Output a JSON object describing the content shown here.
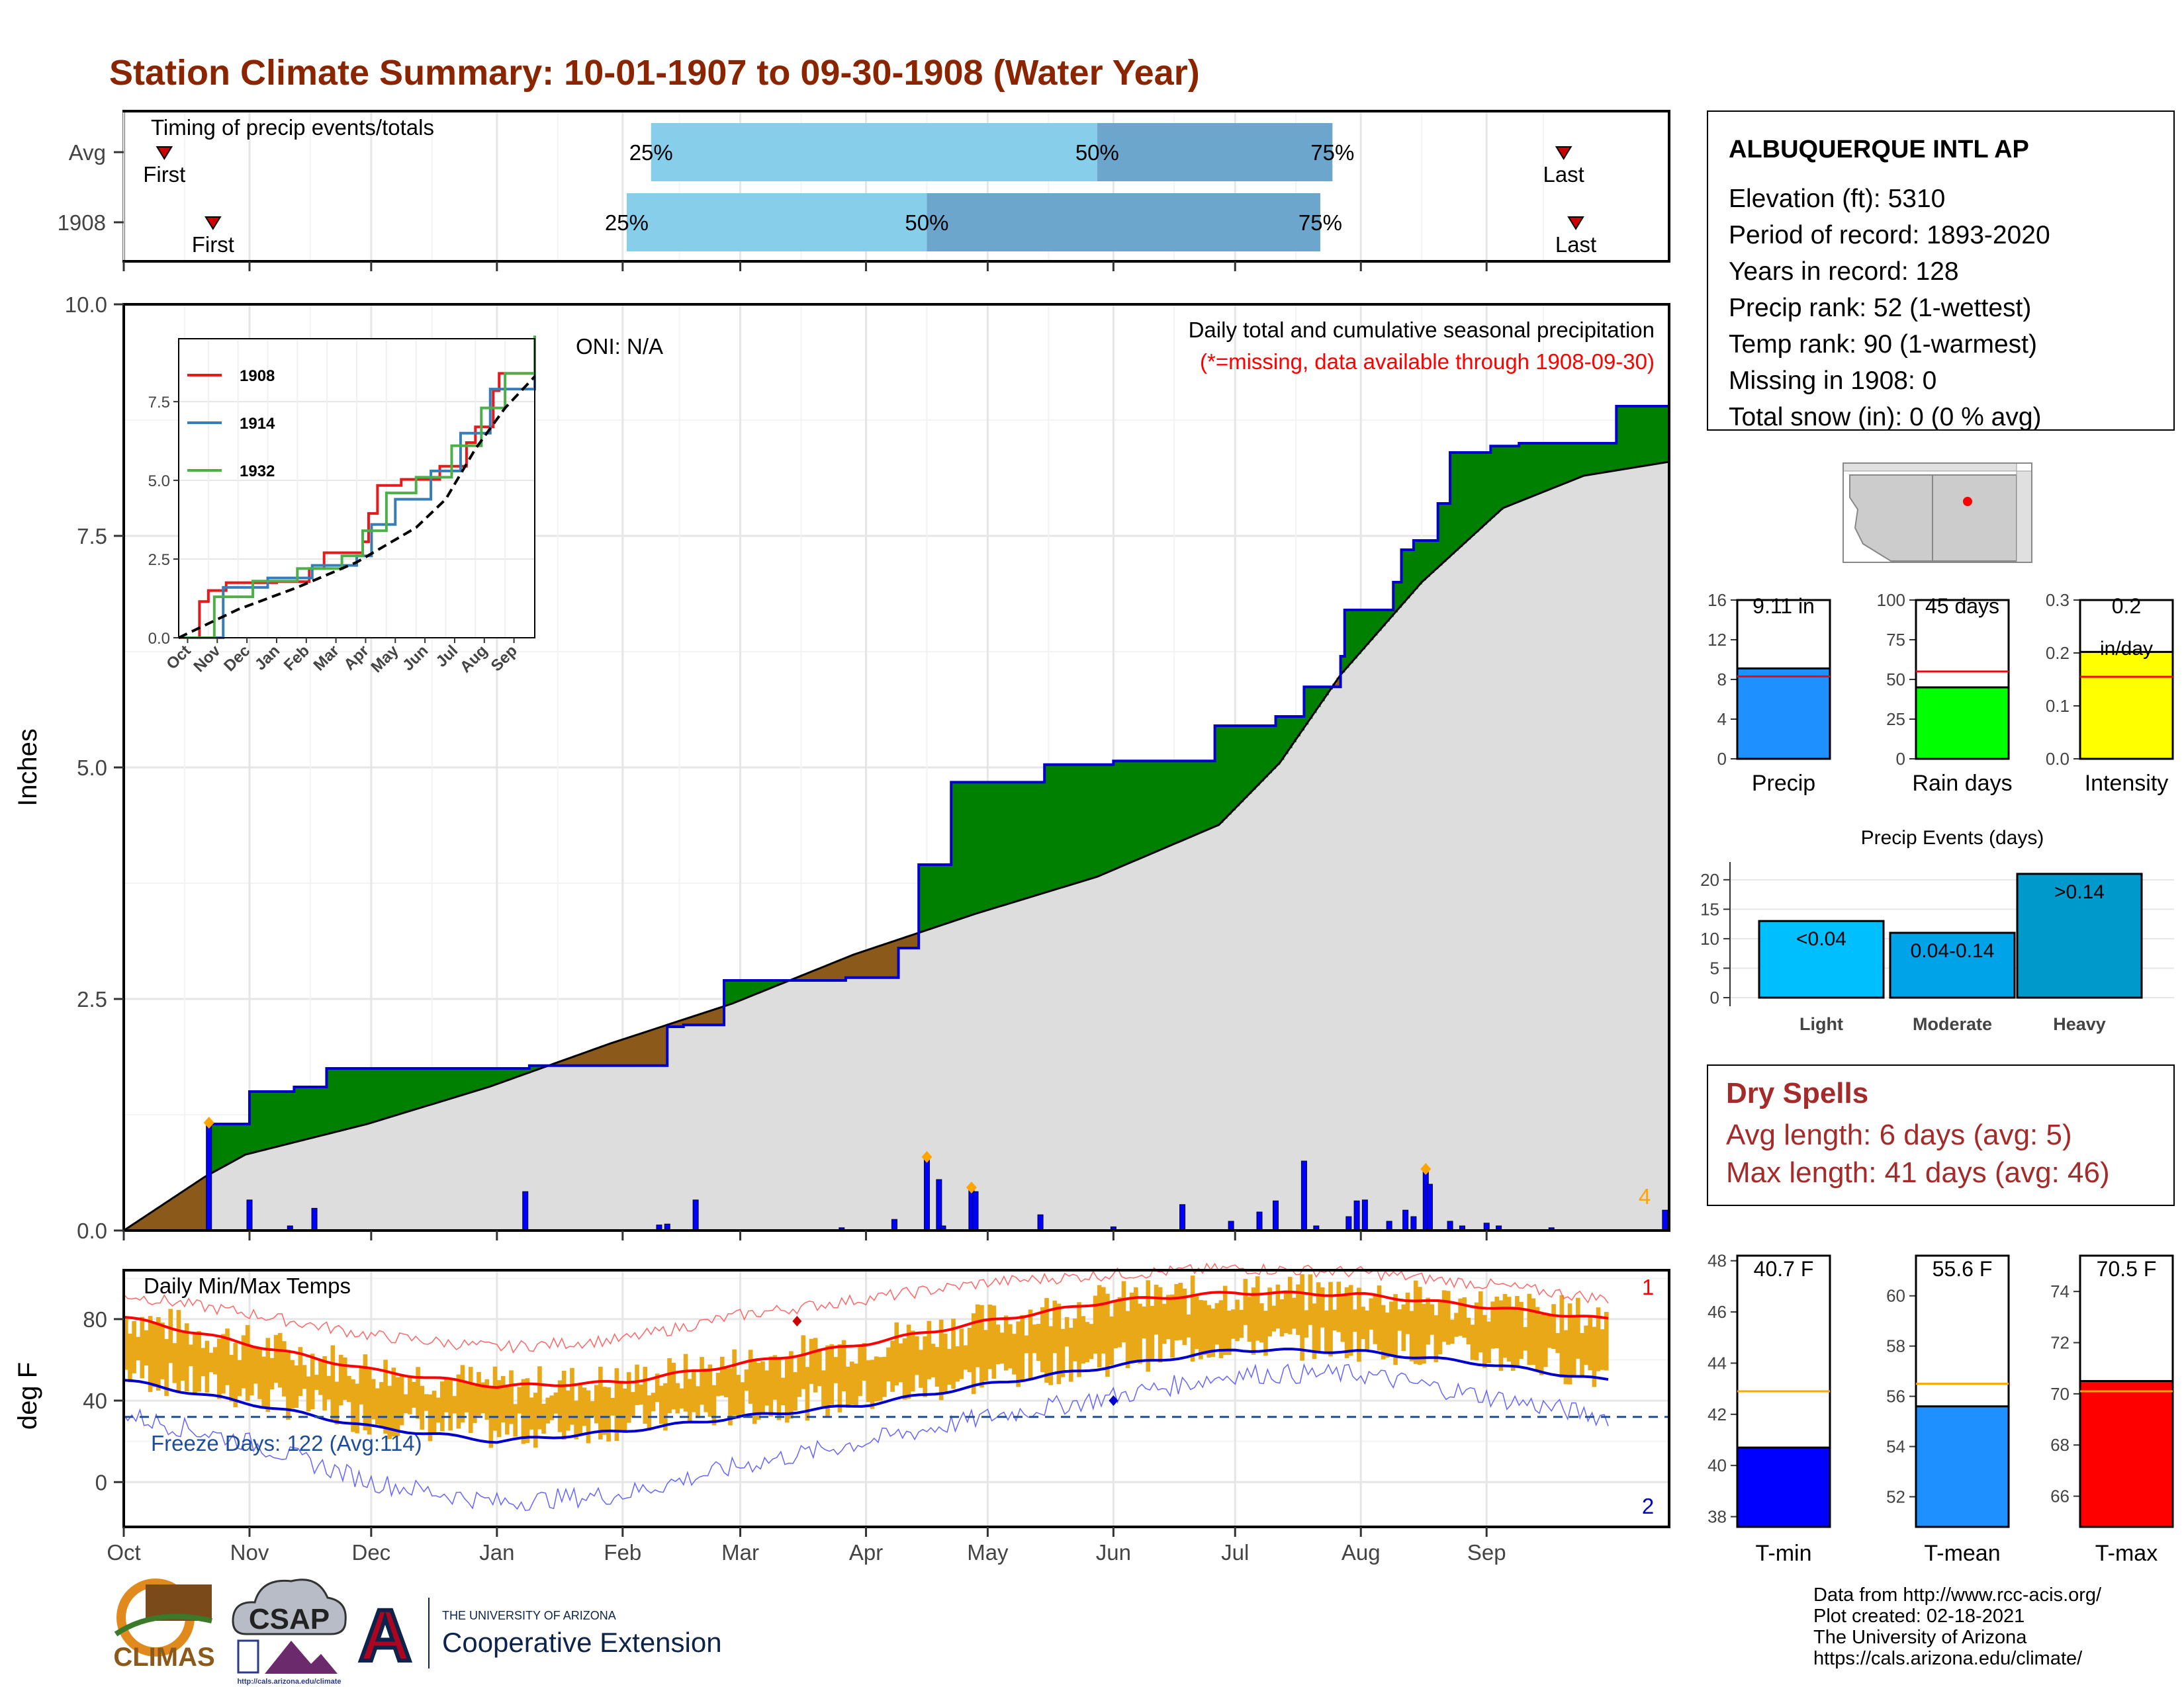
{
  "page_title": "Station Climate Summary: 10-01-1907 to 09-30-1908 (Water Year)",
  "colors": {
    "title": "#8B2500",
    "cumulative_1908": "#0000CD",
    "wet_fill": "#008000",
    "dry_fill": "#8B5A1A",
    "avg_fill": "#DDDDDD",
    "daily_bar": "#0000FF",
    "temp_range": "#E8A818",
    "tmax_line": "#FF0000",
    "tmin_line": "#0000CD",
    "quartile_light": "#87CEEB",
    "quartile_dark": "#6CA6CD",
    "dry_spell_text": "#A52A2A"
  },
  "months": [
    "Oct",
    "Nov",
    "Dec",
    "Jan",
    "Feb",
    "Mar",
    "Apr",
    "May",
    "Jun",
    "Jul",
    "Aug",
    "Sep"
  ],
  "timing": {
    "title": "Timing of precip events/totals",
    "rows": [
      {
        "label": "Avg",
        "first_label": "First",
        "last_label": "Last",
        "first_day": 10,
        "last_day": 355,
        "q25_day": 130,
        "q50_day": 240,
        "q75_day": 298,
        "q_labels": [
          "25%",
          "50%",
          "75%"
        ]
      },
      {
        "label": "1908",
        "first_label": "First",
        "last_label": "Last",
        "first_day": 22,
        "last_day": 358,
        "q25_day": 124,
        "q50_day": 198,
        "q75_day": 295,
        "q_labels": [
          "25%",
          "50%",
          "75%"
        ]
      }
    ]
  },
  "main_chart": {
    "ylabel": "Inches",
    "y_ticks": [
      "0.0",
      "2.5",
      "5.0",
      "7.5",
      "10.0"
    ],
    "annotation_title": "Daily total and cumulative seasonal precipitation",
    "annotation_missing": "(*=missing, data available through 1908-09-30)",
    "oni": "ONI: N/A",
    "corner_count": "4"
  },
  "inset": {
    "series": [
      {
        "name": "1908",
        "color": "#E41A1C"
      },
      {
        "name": "1914",
        "color": "#377EB8"
      },
      {
        "name": "1932",
        "color": "#4DAF4A"
      }
    ],
    "y_ticks": [
      "0.0",
      "2.5",
      "5.0",
      "7.5"
    ],
    "months": [
      "Oct",
      "Nov",
      "Dec",
      "Jan",
      "Feb",
      "Mar",
      "Apr",
      "May",
      "Jun",
      "Jul",
      "Aug",
      "Sep"
    ]
  },
  "temp_chart": {
    "title": "Daily Min/Max Temps",
    "ylabel": "deg F",
    "y_ticks": [
      "0",
      "40",
      "80"
    ],
    "freeze_label": "Freeze Days: 122 (Avg:114)",
    "record_high_count": "1",
    "record_low_count": "2"
  },
  "station": {
    "name": "ALBUQUERQUE INTL AP",
    "lines": [
      "Elevation (ft): 5310",
      "Period of record: 1893-2020",
      "Years in record: 128",
      "Precip rank: 52 (1-wettest)",
      "Temp rank: 90 (1-warmest)",
      "Missing in 1908: 0",
      "Total snow (in): 0 (0 % avg)"
    ]
  },
  "summary_bars": [
    {
      "label": "Precip",
      "value_label": "9.11 in",
      "value": 9.11,
      "avg": 8.3,
      "ymax": 16,
      "ticks": [
        "0",
        "4",
        "8",
        "12",
        "16"
      ],
      "color": "#1E90FF"
    },
    {
      "label": "Rain days",
      "value_label": "45 days",
      "value": 45,
      "avg": 55,
      "ymax": 100,
      "ticks": [
        "0",
        "25",
        "50",
        "75",
        "100"
      ],
      "color": "#00FF00"
    },
    {
      "label": "Intensity",
      "value_label": "0.2",
      "value_label2": "in/day",
      "value": 0.202,
      "avg": 0.155,
      "ymax": 0.3,
      "ticks": [
        "0.0",
        "0.1",
        "0.2",
        "0.3"
      ],
      "color": "#FFFF00"
    }
  ],
  "events": {
    "title": "Precip Events (days)",
    "categories": [
      "Light",
      "Moderate",
      "Heavy"
    ],
    "labels": [
      "<0.04",
      "0.04-0.14",
      ">0.14"
    ],
    "values": [
      13,
      11,
      21
    ],
    "ticks": [
      "0",
      "5",
      "10",
      "15",
      "20"
    ],
    "colors": [
      "#00BFFF",
      "#00A2E8",
      "#0099CC"
    ]
  },
  "dry_spells": {
    "title": "Dry Spells",
    "avg_line": "Avg length: 6 days (avg: 5)",
    "max_line": "Max length: 41 days (avg: 46)"
  },
  "temp_bars": [
    {
      "label": "T-min",
      "value_label": "40.7 F",
      "value": 40.7,
      "avg": 42.9,
      "ymin": 37.6,
      "ymax": 48.2,
      "ticks": [
        38,
        40,
        42,
        44,
        46,
        48
      ],
      "color": "#0000FF"
    },
    {
      "label": "T-mean",
      "value_label": "55.6 F",
      "value": 55.6,
      "avg": 56.5,
      "ymin": 50.8,
      "ymax": 61.6,
      "ticks": [
        52,
        54,
        56,
        58,
        60
      ],
      "color": "#1E90FF"
    },
    {
      "label": "T-max",
      "value_label": "70.5 F",
      "value": 70.5,
      "avg": 70.1,
      "ymin": 64.8,
      "ymax": 75.4,
      "ticks": [
        66,
        68,
        70,
        72,
        74
      ],
      "color": "#FF0000"
    }
  ],
  "footer": {
    "credits": [
      "Data from http://www.rcc-acis.org/",
      "Plot created: 02-18-2021",
      "The University of Arizona",
      "https://cals.arizona.edu/climate/"
    ],
    "logo_climas": "CLIMAS",
    "logo_csap": "CSAP",
    "logo_csap_url": "http://cals.arizona.edu/climate",
    "logo_ua_small": "THE UNIVERSITY OF ARIZONA",
    "logo_ua_big": "Cooperative Extension",
    "logo_ua_letter": "A"
  },
  "chart_data": [
    {
      "type": "area",
      "title": "Daily total and cumulative seasonal precipitation",
      "ylabel": "Inches",
      "ylim": [
        0,
        10
      ],
      "x_unit": "day of water year (0 = Oct 1)",
      "cumulative_1908_steps": [
        [
          0,
          0.0
        ],
        [
          21,
          1.15
        ],
        [
          31,
          1.5
        ],
        [
          42,
          1.55
        ],
        [
          50,
          1.75
        ],
        [
          100,
          1.78
        ],
        [
          134,
          2.2
        ],
        [
          138,
          2.22
        ],
        [
          148,
          2.7
        ],
        [
          178,
          2.73
        ],
        [
          191,
          3.05
        ],
        [
          196,
          3.95
        ],
        [
          204,
          4.84
        ],
        [
          227,
          5.03
        ],
        [
          244,
          5.07
        ],
        [
          269,
          5.45
        ],
        [
          284,
          5.55
        ],
        [
          291,
          5.87
        ],
        [
          300,
          6.2
        ],
        [
          301,
          6.7
        ],
        [
          313,
          7.0
        ],
        [
          315,
          7.35
        ],
        [
          318,
          7.45
        ],
        [
          324,
          7.85
        ],
        [
          327,
          8.4
        ],
        [
          337,
          8.47
        ],
        [
          344,
          8.5
        ],
        [
          368,
          8.9
        ],
        [
          381,
          9.11
        ]
      ],
      "average_cumulative": [
        [
          0,
          0.0
        ],
        [
          20,
          0.58
        ],
        [
          30,
          0.82
        ],
        [
          60,
          1.15
        ],
        [
          90,
          1.55
        ],
        [
          120,
          2.02
        ],
        [
          150,
          2.45
        ],
        [
          180,
          2.98
        ],
        [
          210,
          3.42
        ],
        [
          240,
          3.82
        ],
        [
          270,
          4.38
        ],
        [
          285,
          5.05
        ],
        [
          300,
          6.0
        ],
        [
          320,
          7.0
        ],
        [
          340,
          7.8
        ],
        [
          360,
          8.15
        ],
        [
          381,
          8.3
        ]
      ],
      "daily_precip": [
        [
          21,
          1.15
        ],
        [
          31,
          0.33
        ],
        [
          41,
          0.05
        ],
        [
          47,
          0.24
        ],
        [
          99,
          0.42
        ],
        [
          132,
          0.06
        ],
        [
          134,
          0.07
        ],
        [
          141,
          0.33
        ],
        [
          177,
          0.03
        ],
        [
          190,
          0.12
        ],
        [
          198,
          0.78
        ],
        [
          201,
          0.55
        ],
        [
          202,
          0.05
        ],
        [
          209,
          0.45
        ],
        [
          210,
          0.42
        ],
        [
          226,
          0.17
        ],
        [
          244,
          0.04
        ],
        [
          261,
          0.28
        ],
        [
          273,
          0.1
        ],
        [
          280,
          0.2
        ],
        [
          284,
          0.32
        ],
        [
          291,
          0.75
        ],
        [
          294,
          0.05
        ],
        [
          302,
          0.15
        ],
        [
          304,
          0.32
        ],
        [
          306,
          0.33
        ],
        [
          312,
          0.1
        ],
        [
          316,
          0.22
        ],
        [
          318,
          0.15
        ],
        [
          321,
          0.65
        ],
        [
          322,
          0.5
        ],
        [
          327,
          0.1
        ],
        [
          330,
          0.05
        ],
        [
          336,
          0.08
        ],
        [
          339,
          0.05
        ],
        [
          352,
          0.03
        ],
        [
          380,
          0.22
        ]
      ]
    },
    {
      "type": "line",
      "title": "Inset: cumulative precipitation of analog years",
      "x_unit": "month index (0 = Oct)",
      "ylim": [
        0,
        9.5
      ],
      "series": [
        {
          "name": "1908",
          "values": [
            [
              0,
              0
            ],
            [
              0.7,
              1.15
            ],
            [
              1.0,
              1.5
            ],
            [
              1.6,
              1.75
            ],
            [
              3.3,
              1.78
            ],
            [
              4.4,
              2.2
            ],
            [
              4.9,
              2.7
            ],
            [
              6.2,
              3.05
            ],
            [
              6.4,
              3.95
            ],
            [
              6.7,
              4.84
            ],
            [
              7.5,
              5.03
            ],
            [
              8.8,
              5.45
            ],
            [
              9.7,
              6.2
            ],
            [
              10.0,
              6.7
            ],
            [
              10.6,
              7.85
            ],
            [
              10.8,
              8.4
            ],
            [
              12.0,
              9.11
            ]
          ]
        },
        {
          "name": "1914",
          "values": [
            [
              0,
              0
            ],
            [
              1.5,
              1.6
            ],
            [
              3.0,
              1.9
            ],
            [
              4.5,
              2.3
            ],
            [
              6.0,
              2.6
            ],
            [
              6.5,
              3.6
            ],
            [
              7.3,
              4.4
            ],
            [
              8.5,
              5.3
            ],
            [
              9.5,
              6.5
            ],
            [
              10.5,
              7.9
            ],
            [
              12.0,
              9.3
            ]
          ]
        },
        {
          "name": "1932",
          "values": [
            [
              0,
              0
            ],
            [
              1.2,
              1.3
            ],
            [
              2.5,
              1.8
            ],
            [
              4.0,
              2.2
            ],
            [
              5.5,
              2.6
            ],
            [
              6.2,
              3.4
            ],
            [
              7.0,
              4.6
            ],
            [
              8.0,
              5.1
            ],
            [
              9.2,
              6.1
            ],
            [
              10.2,
              7.3
            ],
            [
              11.0,
              8.4
            ],
            [
              12.0,
              9.6
            ]
          ]
        }
      ],
      "average": [
        [
          0,
          0
        ],
        [
          2,
          0.9
        ],
        [
          4,
          1.6
        ],
        [
          6,
          2.4
        ],
        [
          8,
          3.5
        ],
        [
          9,
          4.4
        ],
        [
          10,
          6.0
        ],
        [
          11,
          7.3
        ],
        [
          12,
          8.3
        ]
      ]
    },
    {
      "type": "line",
      "title": "Daily Min/Max Temps",
      "ylabel": "deg F",
      "ylim": [
        -22,
        104
      ],
      "x_unit": "day of water year (0 = Oct 1)",
      "avg_tmax": [
        [
          0,
          81
        ],
        [
          30,
          68
        ],
        [
          61,
          55
        ],
        [
          92,
          47
        ],
        [
          123,
          49
        ],
        [
          152,
          58
        ],
        [
          183,
          68
        ],
        [
          213,
          79
        ],
        [
          244,
          89
        ],
        [
          274,
          93
        ],
        [
          305,
          92
        ],
        [
          336,
          86
        ],
        [
          365,
          80
        ]
      ],
      "avg_tmin": [
        [
          0,
          50
        ],
        [
          30,
          39
        ],
        [
          61,
          27
        ],
        [
          92,
          20
        ],
        [
          123,
          25
        ],
        [
          152,
          32
        ],
        [
          183,
          38
        ],
        [
          213,
          48
        ],
        [
          244,
          57
        ],
        [
          274,
          65
        ],
        [
          305,
          64
        ],
        [
          336,
          58
        ],
        [
          365,
          50
        ]
      ],
      "record_max": [
        [
          0,
          92
        ],
        [
          30,
          83
        ],
        [
          61,
          72
        ],
        [
          92,
          66
        ],
        [
          123,
          70
        ],
        [
          152,
          82
        ],
        [
          183,
          90
        ],
        [
          213,
          98
        ],
        [
          244,
          102
        ],
        [
          274,
          105
        ],
        [
          305,
          103
        ],
        [
          336,
          97
        ],
        [
          365,
          90
        ]
      ],
      "record_min": [
        [
          0,
          33
        ],
        [
          30,
          20
        ],
        [
          61,
          0
        ],
        [
          92,
          -10
        ],
        [
          123,
          -6
        ],
        [
          152,
          8
        ],
        [
          183,
          20
        ],
        [
          213,
          32
        ],
        [
          244,
          42
        ],
        [
          274,
          53
        ],
        [
          305,
          53
        ],
        [
          336,
          42
        ],
        [
          365,
          32
        ]
      ],
      "freeze_line": 32,
      "record_high_marker": [
        166,
        79
      ],
      "record_low_marker": [
        244,
        40
      ],
      "daily_range_1908": "bars spanning daily Tmin to Tmax for each day; exact per-day values not labeled"
    }
  ]
}
